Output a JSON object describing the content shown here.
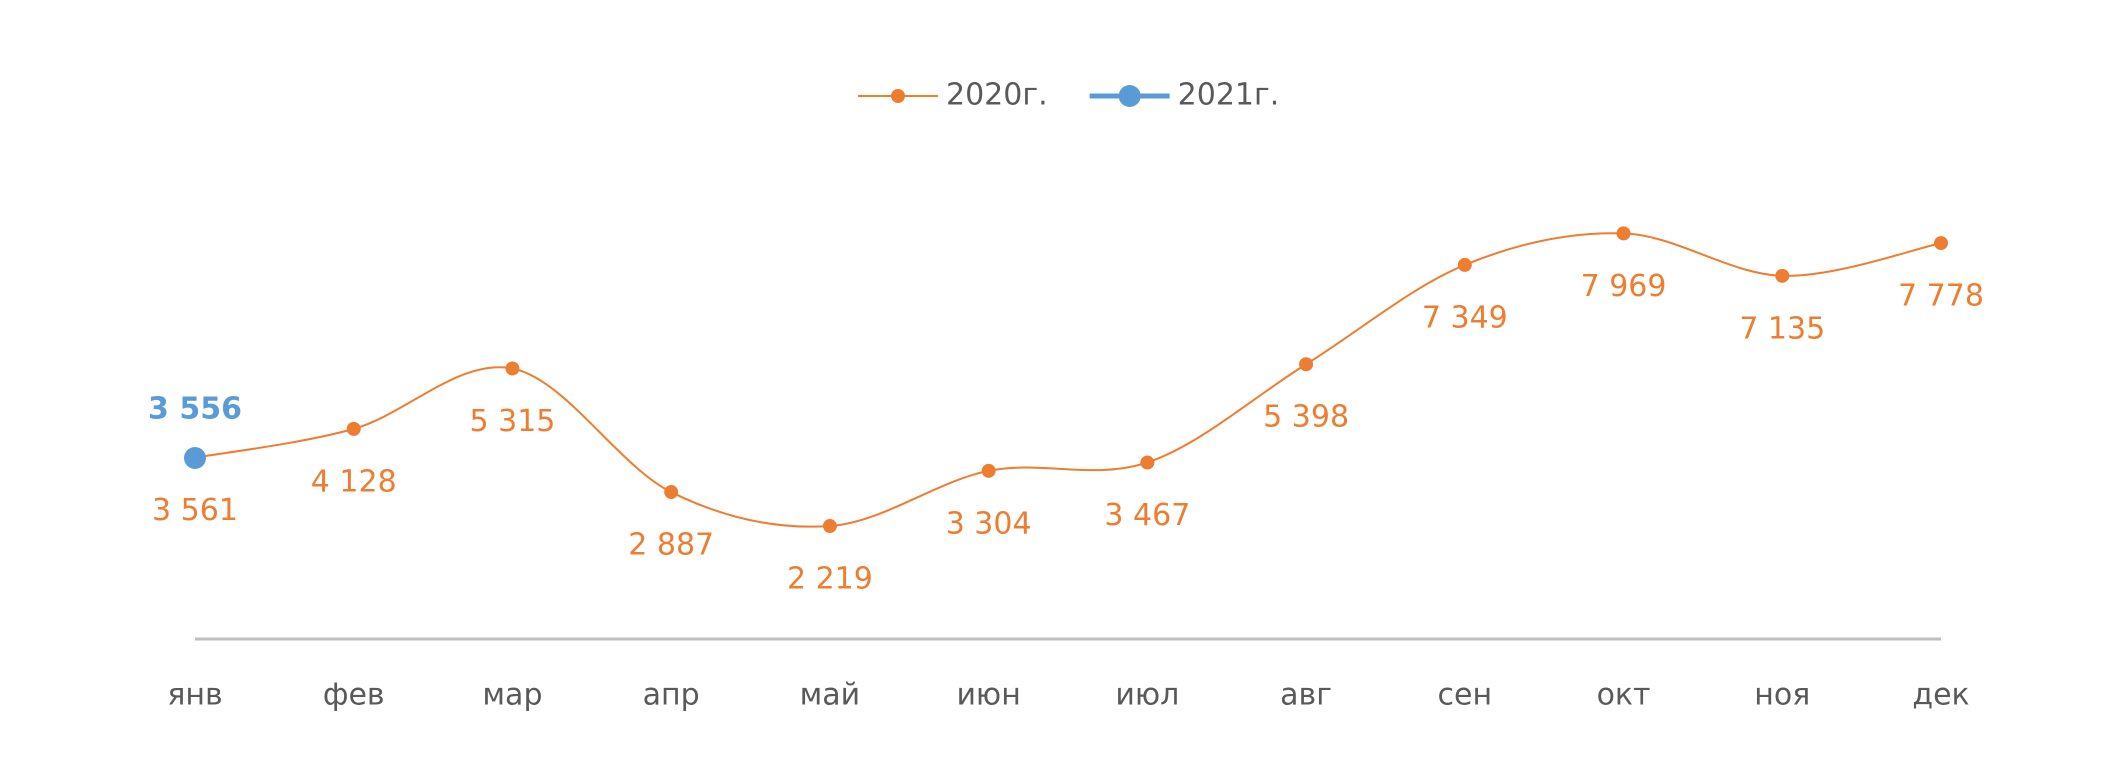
{
  "chart_data": {
    "type": "line",
    "categories": [
      "янв",
      "фев",
      "мар",
      "апр",
      "май",
      "июн",
      "июл",
      "авг",
      "сен",
      "окт",
      "ноя",
      "дек"
    ],
    "series": [
      {
        "name": "2020г.",
        "color": "#ED7D31",
        "values": [
          3561,
          4128,
          5315,
          2887,
          2219,
          3304,
          3467,
          5398,
          7349,
          7969,
          7135,
          7778
        ],
        "value_labels": [
          "3 561",
          "4 128",
          "5 315",
          "2 887",
          "2 219",
          "3 304",
          "3 467",
          "5 398",
          "7 349",
          "7 969",
          "7 135",
          "7 778"
        ]
      },
      {
        "name": "2021г.",
        "color": "#5B9BD5",
        "values": [
          3556,
          null,
          null,
          null,
          null,
          null,
          null,
          null,
          null,
          null,
          null,
          null
        ],
        "value_labels": [
          "3 556",
          null,
          null,
          null,
          null,
          null,
          null,
          null,
          null,
          null,
          null,
          null
        ]
      }
    ],
    "ylim": [
      0,
      10000
    ],
    "smooth": true,
    "legend": "top"
  }
}
